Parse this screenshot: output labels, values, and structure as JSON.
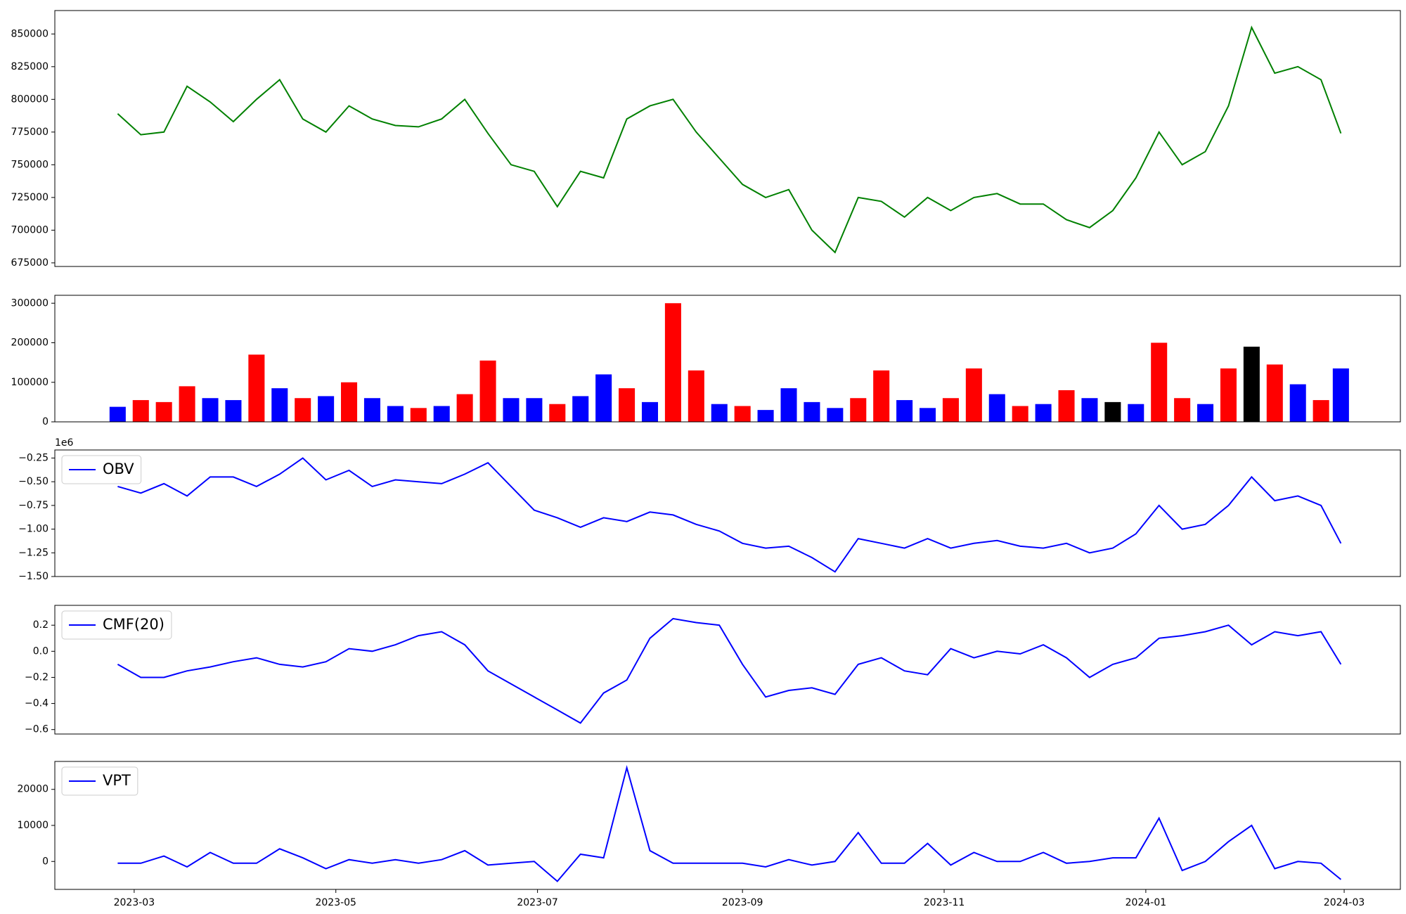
{
  "chart_data": [
    {
      "type": "line",
      "series": [
        {
          "color": "green",
          "values": [
            789000,
            773000,
            775000,
            810000,
            798000,
            783000,
            800000,
            815000,
            785000,
            775000,
            795000,
            785000,
            780000,
            779000,
            785000,
            800000,
            774000,
            750000,
            745000,
            718000,
            745000,
            740000,
            785000,
            795000,
            800000,
            775000,
            755000,
            735000,
            725000,
            731000,
            700000,
            683000,
            725000,
            722000,
            710000,
            725000,
            715000,
            725000,
            728000,
            720000,
            720000,
            708000,
            702000,
            715000,
            740000,
            775000,
            750000,
            760000,
            795000,
            855000,
            820000,
            825000,
            815000,
            774000
          ]
        }
      ],
      "ylim": [
        672250,
        867900
      ],
      "yticks": [
        675000,
        700000,
        725000,
        750000,
        775000,
        800000,
        825000,
        850000
      ]
    },
    {
      "type": "bar",
      "values": [
        38000,
        55000,
        50000,
        90000,
        60000,
        55000,
        170000,
        85000,
        60000,
        65000,
        100000,
        60000,
        40000,
        35000,
        40000,
        70000,
        155000,
        60000,
        60000,
        45000,
        65000,
        120000,
        85000,
        50000,
        300000,
        130000,
        45000,
        40000,
        30000,
        85000,
        50000,
        35000,
        60000,
        130000,
        55000,
        35000,
        60000,
        135000,
        70000,
        40000,
        45000,
        80000,
        60000,
        50000,
        45000,
        200000,
        60000,
        45000,
        135000,
        190000,
        145000,
        95000,
        55000,
        135000
      ],
      "colors": [
        "blue",
        "red",
        "red",
        "red",
        "blue",
        "blue",
        "red",
        "blue",
        "red",
        "blue",
        "red",
        "blue",
        "blue",
        "red",
        "blue",
        "red",
        "red",
        "blue",
        "blue",
        "red",
        "blue",
        "blue",
        "red",
        "blue",
        "red",
        "red",
        "blue",
        "red",
        "blue",
        "blue",
        "blue",
        "blue",
        "red",
        "red",
        "blue",
        "blue",
        "red",
        "red",
        "blue",
        "red",
        "blue",
        "red",
        "blue",
        "black",
        "blue",
        "red",
        "red",
        "blue",
        "red",
        "black",
        "red",
        "blue",
        "red",
        "blue"
      ],
      "ylim": [
        0,
        320000
      ],
      "yticks": [
        0,
        100000,
        200000,
        300000
      ]
    },
    {
      "type": "line",
      "offset_text": "1e6",
      "legend": "upper left",
      "series": [
        {
          "name": "OBV",
          "color": "blue",
          "values": [
            -550000,
            -620000,
            -520000,
            -650000,
            -450000,
            -450000,
            -550000,
            -420000,
            -250000,
            -480000,
            -380000,
            -550000,
            -480000,
            -500000,
            -520000,
            -420000,
            -300000,
            -550000,
            -800000,
            -880000,
            -980000,
            -880000,
            -920000,
            -820000,
            -850000,
            -950000,
            -1020000,
            -1150000,
            -1200000,
            -1180000,
            -1300000,
            -1450000,
            -1100000,
            -1150000,
            -1200000,
            -1100000,
            -1200000,
            -1150000,
            -1120000,
            -1180000,
            -1200000,
            -1150000,
            -1250000,
            -1200000,
            -1050000,
            -750000,
            -1000000,
            -950000,
            -750000,
            -450000,
            -700000,
            -650000,
            -750000,
            -1150000
          ]
        }
      ],
      "ylim": [
        -1500000,
        -165000
      ],
      "yticks": [
        {
          "value": -1500000,
          "label": "−1.50"
        },
        {
          "value": -1250000,
          "label": "−1.25"
        },
        {
          "value": -1000000,
          "label": "−1.00"
        },
        {
          "value": -750000,
          "label": "−0.75"
        },
        {
          "value": -500000,
          "label": "−0.50"
        },
        {
          "value": -250000,
          "label": "−0.25"
        }
      ]
    },
    {
      "type": "line",
      "legend": "upper left",
      "series": [
        {
          "name": "CMF(20)",
          "color": "blue",
          "values": [
            -0.1,
            -0.2,
            -0.2,
            -0.15,
            -0.12,
            -0.08,
            -0.05,
            -0.1,
            -0.12,
            -0.08,
            0.02,
            0.0,
            0.05,
            0.12,
            0.15,
            0.05,
            -0.15,
            -0.25,
            -0.35,
            -0.45,
            -0.55,
            -0.32,
            -0.22,
            0.1,
            0.25,
            0.22,
            0.2,
            -0.1,
            -0.35,
            -0.3,
            -0.28,
            -0.33,
            -0.1,
            -0.05,
            -0.15,
            -0.18,
            0.02,
            -0.05,
            0.0,
            -0.02,
            0.05,
            -0.05,
            -0.2,
            -0.1,
            -0.05,
            0.1,
            0.12,
            0.15,
            0.2,
            0.05,
            0.15,
            0.12,
            0.15,
            -0.1
          ]
        }
      ],
      "ylim": [
        -0.634,
        0.352
      ],
      "yticks": [
        {
          "value": -0.6,
          "label": "−0.6"
        },
        {
          "value": -0.4,
          "label": "−0.4"
        },
        {
          "value": -0.2,
          "label": "−0.2"
        },
        {
          "value": 0,
          "label": "0.0"
        },
        {
          "value": 0.2,
          "label": "0.2"
        }
      ]
    },
    {
      "type": "line",
      "legend": "upper left",
      "series": [
        {
          "name": "VPT",
          "color": "blue",
          "values": [
            -500,
            -500,
            1500,
            -1500,
            2500,
            -500,
            -500,
            3500,
            1000,
            -2000,
            500,
            -500,
            500,
            -500,
            500,
            3000,
            -1000,
            -500,
            0,
            -5500,
            2000,
            1000,
            26000,
            3000,
            -500,
            -500,
            -500,
            -500,
            -1500,
            500,
            -1000,
            0,
            8000,
            -500,
            -500,
            5000,
            -1000,
            2500,
            0,
            0,
            2500,
            -500,
            0,
            1000,
            1000,
            12000,
            -2500,
            0,
            5500,
            10000,
            -2000,
            0,
            -500,
            -5000
          ]
        }
      ],
      "ylim": [
        -7750,
        27750
      ],
      "yticks": [
        0,
        10000,
        20000
      ],
      "x": [
        "2023-02-24",
        "2023-03-03",
        "2023-03-10",
        "2023-03-17",
        "2023-03-24",
        "2023-03-31",
        "2023-04-07",
        "2023-04-14",
        "2023-04-21",
        "2023-04-28",
        "2023-05-05",
        "2023-05-12",
        "2023-05-19",
        "2023-05-26",
        "2023-06-02",
        "2023-06-09",
        "2023-06-16",
        "2023-06-23",
        "2023-06-30",
        "2023-07-07",
        "2023-07-14",
        "2023-07-21",
        "2023-07-28",
        "2023-08-04",
        "2023-08-11",
        "2023-08-18",
        "2023-08-25",
        "2023-09-01",
        "2023-09-08",
        "2023-09-15",
        "2023-09-22",
        "2023-09-29",
        "2023-10-06",
        "2023-10-13",
        "2023-10-20",
        "2023-10-27",
        "2023-11-03",
        "2023-11-10",
        "2023-11-17",
        "2023-11-24",
        "2023-12-01",
        "2023-12-08",
        "2023-12-15",
        "2023-12-22",
        "2023-12-29",
        "2024-01-05",
        "2024-01-12",
        "2024-01-19",
        "2024-01-26",
        "2024-02-02",
        "2024-02-09",
        "2024-02-16",
        "2024-02-23",
        "2024-02-29"
      ],
      "xlim": [
        "2023-02-05",
        "2024-03-18"
      ],
      "xticks": [
        "2023-03",
        "2023-05",
        "2023-07",
        "2023-09",
        "2023-11",
        "2024-01",
        "2024-03"
      ]
    }
  ]
}
